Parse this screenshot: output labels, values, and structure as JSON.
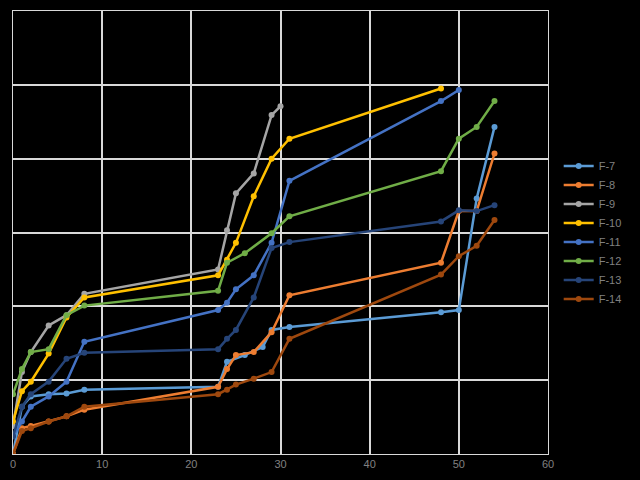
{
  "chart_data": {
    "type": "line",
    "xlim": [
      0,
      60
    ],
    "xticks": [
      0,
      10,
      20,
      30,
      40,
      50,
      60
    ],
    "ylim": [
      0,
      6
    ],
    "yticks": [
      0,
      1,
      2,
      3,
      4,
      5,
      6
    ],
    "grid": true,
    "legend": "right",
    "tick_labels": "x",
    "marker": "circle",
    "line_style": "solid",
    "series": [
      {
        "name": "F-7",
        "color": "#5B9BD5",
        "x": [
          0,
          1,
          2,
          4,
          6,
          8,
          23,
          24,
          26,
          28,
          29,
          31,
          48,
          50,
          52,
          54
        ],
        "values": [
          0,
          0.64,
          0.78,
          0.81,
          0.82,
          0.87,
          0.91,
          1.25,
          1.34,
          1.45,
          1.68,
          1.72,
          1.92,
          1.95,
          3.46,
          4.43
        ]
      },
      {
        "name": "F-8",
        "color": "#ED7D31",
        "x": [
          0,
          1,
          2,
          4,
          6,
          8,
          23,
          24,
          25,
          27,
          29,
          31,
          48,
          50,
          52,
          54
        ],
        "values": [
          0,
          0.35,
          0.38,
          0.44,
          0.51,
          0.6,
          0.91,
          1.15,
          1.34,
          1.38,
          1.65,
          2.15,
          2.59,
          3.29,
          3.29,
          4.07
        ]
      },
      {
        "name": "F-9",
        "color": "#A5A5A5",
        "x": [
          0,
          1,
          2,
          4,
          6,
          8,
          23,
          24,
          25,
          27,
          29,
          30
        ],
        "values": [
          0.38,
          1.11,
          1.38,
          1.74,
          1.88,
          2.17,
          2.5,
          3.03,
          3.53,
          3.8,
          4.59,
          4.71
        ]
      },
      {
        "name": "F-10",
        "color": "#FFC000",
        "x": [
          0,
          1,
          2,
          4,
          6,
          8,
          23,
          24,
          25,
          27,
          29,
          31,
          48
        ],
        "values": [
          0.44,
          0.85,
          0.98,
          1.36,
          1.85,
          2.12,
          2.42,
          2.63,
          2.86,
          3.49,
          4.0,
          4.27,
          4.95
        ]
      },
      {
        "name": "F-11",
        "color": "#4472C4",
        "x": [
          0,
          1,
          2,
          4,
          6,
          8,
          23,
          24,
          25,
          27,
          29,
          31,
          48,
          50
        ],
        "values": [
          0.24,
          0.44,
          0.64,
          0.78,
          0.98,
          1.52,
          1.95,
          2.05,
          2.23,
          2.42,
          2.86,
          3.7,
          4.78,
          4.93
        ]
      },
      {
        "name": "F-12",
        "color": "#70AD47",
        "x": [
          0,
          1,
          2,
          4,
          6,
          8,
          23,
          24,
          26,
          29,
          31,
          48,
          50,
          52,
          54
        ],
        "values": [
          0.81,
          1.15,
          1.38,
          1.42,
          1.88,
          2.01,
          2.21,
          2.59,
          2.72,
          2.99,
          3.22,
          3.83,
          4.27,
          4.43,
          4.78
        ]
      },
      {
        "name": "F-13",
        "color": "#264478",
        "x": [
          0,
          1,
          2,
          4,
          6,
          8,
          23,
          24,
          25,
          27,
          29,
          31,
          48,
          50,
          52,
          54
        ],
        "values": [
          0.24,
          0.64,
          0.81,
          0.98,
          1.29,
          1.37,
          1.42,
          1.56,
          1.68,
          2.12,
          2.79,
          2.87,
          3.15,
          3.3,
          3.29,
          3.37
        ]
      },
      {
        "name": "F-14",
        "color": "#9E480E",
        "x": [
          0,
          1,
          2,
          4,
          6,
          8,
          23,
          24,
          25,
          27,
          29,
          31,
          48,
          50,
          52,
          54
        ],
        "values": [
          0,
          0.31,
          0.35,
          0.44,
          0.51,
          0.64,
          0.81,
          0.87,
          0.94,
          1.02,
          1.11,
          1.56,
          2.43,
          2.68,
          2.82,
          3.17
        ]
      }
    ]
  }
}
